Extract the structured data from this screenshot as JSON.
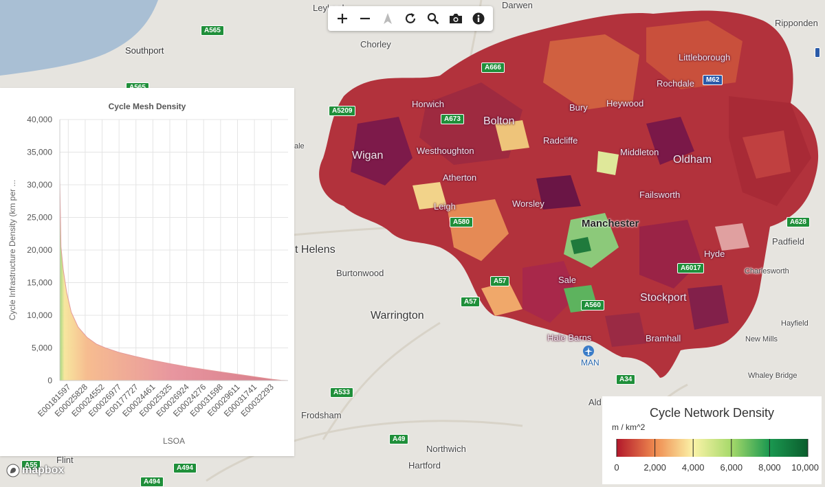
{
  "map": {
    "places": [
      {
        "name": "Southport",
        "cls": "big"
      },
      {
        "name": "Chorley",
        "cls": ""
      },
      {
        "name": "Leyland",
        "cls": ""
      },
      {
        "name": "Ripponden",
        "cls": ""
      },
      {
        "name": "Littleborough",
        "cls": "on"
      },
      {
        "name": "Rochdale",
        "cls": "on"
      },
      {
        "name": "Horwich",
        "cls": "on"
      },
      {
        "name": "Bury",
        "cls": "on"
      },
      {
        "name": "Heywood",
        "cls": "on"
      },
      {
        "name": "Bolton",
        "cls": "on big"
      },
      {
        "name": "Radcliffe",
        "cls": "on"
      },
      {
        "name": "Westhoughton",
        "cls": "on"
      },
      {
        "name": "Middleton",
        "cls": "on"
      },
      {
        "name": "Wigan",
        "cls": "on big"
      },
      {
        "name": "Oldham",
        "cls": "on big"
      },
      {
        "name": "Atherton",
        "cls": "on"
      },
      {
        "name": "Failsworth",
        "cls": "on"
      },
      {
        "name": "Leigh",
        "cls": "on"
      },
      {
        "name": "Worsley",
        "cls": "on"
      },
      {
        "name": "Manchester",
        "cls": "city"
      },
      {
        "name": "Padfield",
        "cls": ""
      },
      {
        "name": "t Helens",
        "cls": "big"
      },
      {
        "name": "Hyde",
        "cls": "on"
      },
      {
        "name": "Burtonwood",
        "cls": ""
      },
      {
        "name": "Charlesworth",
        "cls": ""
      },
      {
        "name": "Sale",
        "cls": "on"
      },
      {
        "name": "Stockport",
        "cls": "on big"
      },
      {
        "name": "Warrington",
        "cls": "big"
      },
      {
        "name": "Hayfield",
        "cls": ""
      },
      {
        "name": "Hale Barns",
        "cls": "on"
      },
      {
        "name": "Bramhall",
        "cls": "on"
      },
      {
        "name": "New Mills",
        "cls": ""
      },
      {
        "name": "MAN",
        "cls": ""
      },
      {
        "name": "Whaley Bridge",
        "cls": ""
      },
      {
        "name": "Frodsham",
        "cls": ""
      },
      {
        "name": "Ald",
        "cls": ""
      },
      {
        "name": "Northwich",
        "cls": ""
      },
      {
        "name": "Flint",
        "cls": ""
      },
      {
        "name": "Hartford",
        "cls": ""
      },
      {
        "name": "Darwen",
        "cls": ""
      },
      {
        "name": "ale",
        "cls": ""
      }
    ],
    "roads": [
      "A565",
      "A565",
      "A666",
      "A5209",
      "A673",
      "M62",
      "A580",
      "A628",
      "A6017",
      "A57",
      "A57",
      "A560",
      "A34",
      "A533",
      "A49",
      "A55",
      "A494",
      "A494"
    ]
  },
  "toolbar": {
    "buttons": [
      {
        "name": "zoom-in-button",
        "icon": "plus-icon",
        "glyph": "+"
      },
      {
        "name": "zoom-out-button",
        "icon": "minus-icon",
        "glyph": "−"
      },
      {
        "name": "reset-north-button",
        "icon": "compass-icon",
        "glyph": "▲"
      },
      {
        "name": "reset-view-button",
        "icon": "refresh-icon",
        "glyph": "↻"
      },
      {
        "name": "search-button",
        "icon": "search-icon",
        "glyph": "⚲"
      },
      {
        "name": "screenshot-button",
        "icon": "camera-icon",
        "glyph": "📷"
      },
      {
        "name": "info-button",
        "icon": "info-icon",
        "glyph": "i"
      }
    ]
  },
  "chart_data": {
    "type": "area",
    "title": "Cycle Mesh Density",
    "xlabel": "LSOA",
    "ylabel": "Cycle Infrastructure Density (km per ...",
    "ylim": [
      0,
      40000
    ],
    "yticks": [
      "0",
      "5,000",
      "10,000",
      "15,000",
      "20,000",
      "25,000",
      "30,000",
      "35,000",
      "40,000"
    ],
    "xtick_labels": [
      "E00181597",
      "E00025828",
      "E00024552",
      "E00026977",
      "E00177727",
      "E00024461",
      "E00025325",
      "E00026924",
      "E00024276",
      "E00031598",
      "E00029611",
      "E00031741",
      "E00032293"
    ],
    "curve": [
      {
        "x": 0.0,
        "y": 31000
      },
      {
        "x": 0.005,
        "y": 20500
      },
      {
        "x": 0.015,
        "y": 17000
      },
      {
        "x": 0.03,
        "y": 13500
      },
      {
        "x": 0.05,
        "y": 10500
      },
      {
        "x": 0.08,
        "y": 8200
      },
      {
        "x": 0.12,
        "y": 6600
      },
      {
        "x": 0.16,
        "y": 5600
      },
      {
        "x": 0.2,
        "y": 5000
      },
      {
        "x": 0.26,
        "y": 4300
      },
      {
        "x": 0.33,
        "y": 3700
      },
      {
        "x": 0.4,
        "y": 3150
      },
      {
        "x": 0.48,
        "y": 2600
      },
      {
        "x": 0.56,
        "y": 2100
      },
      {
        "x": 0.64,
        "y": 1650
      },
      {
        "x": 0.72,
        "y": 1250
      },
      {
        "x": 0.8,
        "y": 850
      },
      {
        "x": 0.87,
        "y": 500
      },
      {
        "x": 0.93,
        "y": 200
      },
      {
        "x": 0.97,
        "y": 40
      },
      {
        "x": 1.0,
        "y": 0
      }
    ],
    "grid": true,
    "legend": "none"
  },
  "legend": {
    "title": "Cycle Network Density",
    "unit": "m / km^2",
    "range": [
      0,
      10000
    ],
    "ticks": [
      "0",
      "2,000",
      "4,000",
      "6,000",
      "8,000",
      "10,000"
    ],
    "colors": [
      "#b2182b",
      "#ef8a4f",
      "#fbf3a8",
      "#a6d96a",
      "#1a9850",
      "#0b5d2d"
    ]
  },
  "attribution": {
    "logo": "mapbox"
  }
}
